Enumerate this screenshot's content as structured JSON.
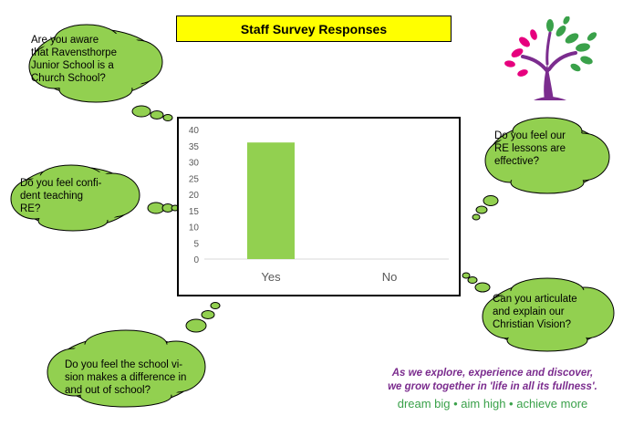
{
  "title": "Staff Survey Responses",
  "questions": {
    "q1": "Are you aware\nthat Ravensthorpe\nJunior School is a\nChurch School?",
    "q2": "Do you feel confi-\ndent teaching\nRE?",
    "q3": "Do you feel the school vi-\nsion makes a difference in\nand out of school?",
    "q4": "Do you feel our\nRE lessons are\neffective?",
    "q5": "Can you articulate\nand explain our\nChristian Vision?"
  },
  "motto": {
    "line1": "As we explore, experience and discover,",
    "line2": "we grow together in 'life in all its fullness'.",
    "line3": "dream big • aim high • achieve more"
  },
  "colors": {
    "title_bg": "#ffff00",
    "cloud_fill": "#92d050",
    "bar": "#92d050",
    "motto_purple": "#7b2c8e",
    "motto_green": "#3aa14a"
  },
  "chart_data": {
    "type": "bar",
    "categories": [
      "Yes",
      "No"
    ],
    "values": [
      36,
      0
    ],
    "title": "",
    "xlabel": "",
    "ylabel": "",
    "ylim": [
      0,
      40
    ],
    "yticks": [
      0,
      5,
      10,
      15,
      20,
      25,
      30,
      35,
      40
    ],
    "grid": false,
    "legend": "none"
  }
}
